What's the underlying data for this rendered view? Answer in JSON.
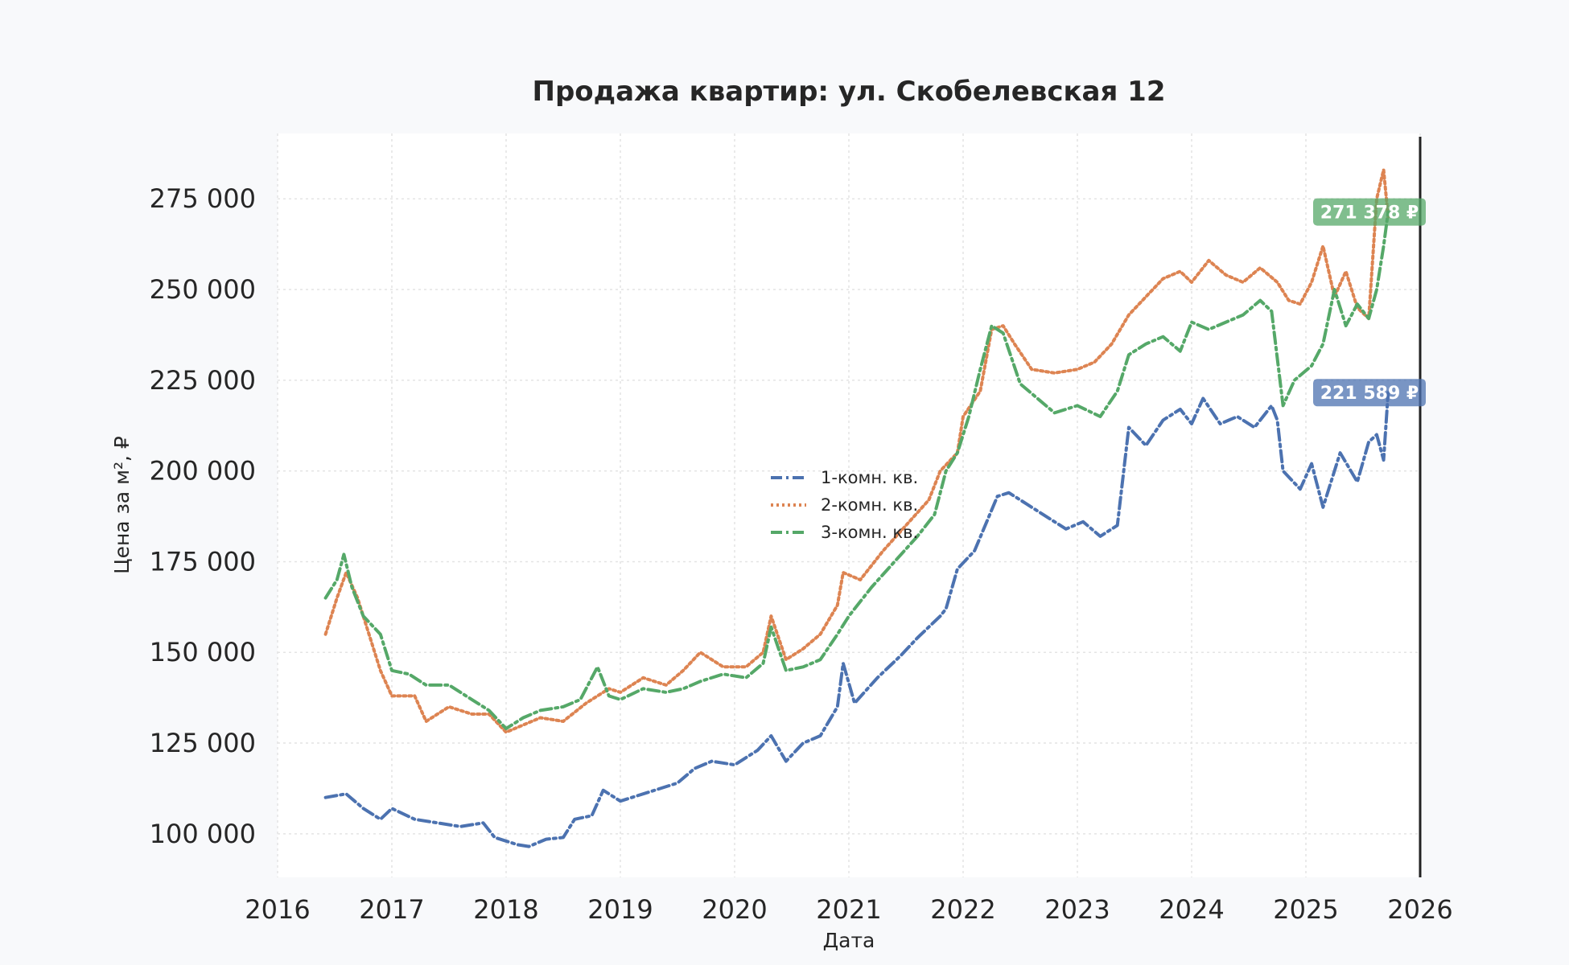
{
  "chart_data": {
    "type": "line",
    "title": "Продажа квартир: ул. Скобелевская 12",
    "xlabel": "Дата",
    "ylabel": "Цена за м², ₽",
    "xlim": [
      2016,
      2026
    ],
    "ylim": [
      88000,
      293000
    ],
    "x_ticks": [
      "2016",
      "2017",
      "2018",
      "2019",
      "2020",
      "2021",
      "2022",
      "2023",
      "2024",
      "2025",
      "2026"
    ],
    "y_ticks": [
      {
        "value": 100000,
        "label": "100 000"
      },
      {
        "value": 125000,
        "label": "125 000"
      },
      {
        "value": 150000,
        "label": "150 000"
      },
      {
        "value": 175000,
        "label": "175 000"
      },
      {
        "value": 200000,
        "label": "200 000"
      },
      {
        "value": 225000,
        "label": "225 000"
      },
      {
        "value": 250000,
        "label": "250 000"
      },
      {
        "value": 275000,
        "label": "275 000"
      }
    ],
    "grid": true,
    "legend_position": "center",
    "vline_x": 2026,
    "series": [
      {
        "name": "1-комн. кв.",
        "color": "#4c72b0",
        "dash": "dash-dot",
        "points": [
          [
            2016.42,
            110000
          ],
          [
            2016.6,
            111000
          ],
          [
            2016.75,
            107000
          ],
          [
            2016.9,
            104000
          ],
          [
            2017.0,
            107000
          ],
          [
            2017.2,
            104000
          ],
          [
            2017.4,
            103000
          ],
          [
            2017.6,
            102000
          ],
          [
            2017.8,
            103000
          ],
          [
            2017.9,
            99000
          ],
          [
            2018.1,
            97000
          ],
          [
            2018.2,
            96500
          ],
          [
            2018.35,
            98500
          ],
          [
            2018.5,
            99000
          ],
          [
            2018.6,
            104000
          ],
          [
            2018.75,
            105000
          ],
          [
            2018.85,
            112000
          ],
          [
            2019.0,
            109000
          ],
          [
            2019.3,
            112000
          ],
          [
            2019.5,
            114000
          ],
          [
            2019.65,
            118000
          ],
          [
            2019.8,
            120000
          ],
          [
            2020.0,
            119000
          ],
          [
            2020.2,
            123000
          ],
          [
            2020.32,
            127000
          ],
          [
            2020.45,
            120000
          ],
          [
            2020.6,
            125000
          ],
          [
            2020.75,
            127000
          ],
          [
            2020.9,
            135000
          ],
          [
            2020.95,
            147000
          ],
          [
            2021.05,
            136000
          ],
          [
            2021.25,
            143000
          ],
          [
            2021.45,
            149000
          ],
          [
            2021.6,
            154000
          ],
          [
            2021.8,
            160000
          ],
          [
            2021.85,
            162000
          ],
          [
            2021.95,
            173000
          ],
          [
            2022.1,
            178000
          ],
          [
            2022.3,
            193000
          ],
          [
            2022.4,
            194000
          ],
          [
            2022.55,
            191000
          ],
          [
            2022.7,
            188000
          ],
          [
            2022.9,
            184000
          ],
          [
            2023.05,
            186000
          ],
          [
            2023.2,
            182000
          ],
          [
            2023.35,
            185000
          ],
          [
            2023.45,
            212000
          ],
          [
            2023.6,
            207000
          ],
          [
            2023.75,
            214000
          ],
          [
            2023.9,
            217000
          ],
          [
            2024.0,
            213000
          ],
          [
            2024.1,
            220000
          ],
          [
            2024.25,
            213000
          ],
          [
            2024.4,
            215000
          ],
          [
            2024.55,
            212000
          ],
          [
            2024.7,
            218000
          ],
          [
            2024.75,
            214000
          ],
          [
            2024.8,
            200000
          ],
          [
            2024.95,
            195000
          ],
          [
            2025.05,
            202000
          ],
          [
            2025.15,
            190000
          ],
          [
            2025.3,
            205000
          ],
          [
            2025.45,
            197000
          ],
          [
            2025.55,
            208000
          ],
          [
            2025.62,
            210000
          ],
          [
            2025.68,
            203000
          ],
          [
            2025.72,
            221589
          ]
        ]
      },
      {
        "name": "2-комн. кв.",
        "color": "#dd8452",
        "dash": "dotted",
        "points": [
          [
            2016.42,
            155000
          ],
          [
            2016.52,
            165000
          ],
          [
            2016.6,
            172000
          ],
          [
            2016.7,
            165000
          ],
          [
            2016.8,
            155000
          ],
          [
            2016.9,
            145000
          ],
          [
            2017.0,
            138000
          ],
          [
            2017.2,
            138000
          ],
          [
            2017.3,
            131000
          ],
          [
            2017.5,
            135000
          ],
          [
            2017.7,
            133000
          ],
          [
            2017.85,
            133000
          ],
          [
            2018.0,
            128000
          ],
          [
            2018.15,
            130000
          ],
          [
            2018.3,
            132000
          ],
          [
            2018.5,
            131000
          ],
          [
            2018.7,
            136000
          ],
          [
            2018.9,
            140000
          ],
          [
            2019.0,
            139000
          ],
          [
            2019.2,
            143000
          ],
          [
            2019.4,
            141000
          ],
          [
            2019.55,
            145000
          ],
          [
            2019.7,
            150000
          ],
          [
            2019.9,
            146000
          ],
          [
            2020.1,
            146000
          ],
          [
            2020.25,
            150000
          ],
          [
            2020.32,
            160000
          ],
          [
            2020.45,
            148000
          ],
          [
            2020.6,
            151000
          ],
          [
            2020.75,
            155000
          ],
          [
            2020.9,
            163000
          ],
          [
            2020.95,
            172000
          ],
          [
            2021.1,
            170000
          ],
          [
            2021.3,
            178000
          ],
          [
            2021.5,
            185000
          ],
          [
            2021.7,
            192000
          ],
          [
            2021.8,
            200000
          ],
          [
            2021.95,
            205000
          ],
          [
            2022.0,
            215000
          ],
          [
            2022.15,
            222000
          ],
          [
            2022.25,
            239000
          ],
          [
            2022.35,
            240000
          ],
          [
            2022.45,
            235000
          ],
          [
            2022.6,
            228000
          ],
          [
            2022.8,
            227000
          ],
          [
            2023.0,
            228000
          ],
          [
            2023.15,
            230000
          ],
          [
            2023.3,
            235000
          ],
          [
            2023.45,
            243000
          ],
          [
            2023.6,
            248000
          ],
          [
            2023.75,
            253000
          ],
          [
            2023.9,
            255000
          ],
          [
            2024.0,
            252000
          ],
          [
            2024.15,
            258000
          ],
          [
            2024.3,
            254000
          ],
          [
            2024.45,
            252000
          ],
          [
            2024.6,
            256000
          ],
          [
            2024.75,
            252000
          ],
          [
            2024.85,
            247000
          ],
          [
            2024.95,
            246000
          ],
          [
            2025.05,
            252000
          ],
          [
            2025.15,
            262000
          ],
          [
            2025.25,
            248000
          ],
          [
            2025.35,
            255000
          ],
          [
            2025.45,
            245000
          ],
          [
            2025.55,
            242000
          ],
          [
            2025.62,
            275000
          ],
          [
            2025.68,
            283000
          ],
          [
            2025.72,
            270000
          ]
        ]
      },
      {
        "name": "3-комн. кв.",
        "color": "#55a868",
        "dash": "dash-dot",
        "points": [
          [
            2016.42,
            165000
          ],
          [
            2016.52,
            170000
          ],
          [
            2016.58,
            177000
          ],
          [
            2016.65,
            168000
          ],
          [
            2016.75,
            160000
          ],
          [
            2016.9,
            155000
          ],
          [
            2017.0,
            145000
          ],
          [
            2017.15,
            144000
          ],
          [
            2017.3,
            141000
          ],
          [
            2017.5,
            141000
          ],
          [
            2017.7,
            137000
          ],
          [
            2017.85,
            134000
          ],
          [
            2018.0,
            129000
          ],
          [
            2018.15,
            132000
          ],
          [
            2018.3,
            134000
          ],
          [
            2018.5,
            135000
          ],
          [
            2018.65,
            137000
          ],
          [
            2018.8,
            146000
          ],
          [
            2018.9,
            138000
          ],
          [
            2019.0,
            137000
          ],
          [
            2019.2,
            140000
          ],
          [
            2019.4,
            139000
          ],
          [
            2019.55,
            140000
          ],
          [
            2019.7,
            142000
          ],
          [
            2019.9,
            144000
          ],
          [
            2020.1,
            143000
          ],
          [
            2020.25,
            147000
          ],
          [
            2020.32,
            157000
          ],
          [
            2020.45,
            145000
          ],
          [
            2020.6,
            146000
          ],
          [
            2020.75,
            148000
          ],
          [
            2020.9,
            155000
          ],
          [
            2021.0,
            160000
          ],
          [
            2021.2,
            168000
          ],
          [
            2021.4,
            175000
          ],
          [
            2021.6,
            182000
          ],
          [
            2021.75,
            188000
          ],
          [
            2021.85,
            200000
          ],
          [
            2021.95,
            205000
          ],
          [
            2022.05,
            215000
          ],
          [
            2022.15,
            228000
          ],
          [
            2022.25,
            240000
          ],
          [
            2022.35,
            238000
          ],
          [
            2022.5,
            224000
          ],
          [
            2022.65,
            220000
          ],
          [
            2022.8,
            216000
          ],
          [
            2023.0,
            218000
          ],
          [
            2023.2,
            215000
          ],
          [
            2023.35,
            222000
          ],
          [
            2023.45,
            232000
          ],
          [
            2023.6,
            235000
          ],
          [
            2023.75,
            237000
          ],
          [
            2023.9,
            233000
          ],
          [
            2024.0,
            241000
          ],
          [
            2024.15,
            239000
          ],
          [
            2024.3,
            241000
          ],
          [
            2024.45,
            243000
          ],
          [
            2024.6,
            247000
          ],
          [
            2024.7,
            244000
          ],
          [
            2024.8,
            218000
          ],
          [
            2024.9,
            225000
          ],
          [
            2025.05,
            229000
          ],
          [
            2025.15,
            235000
          ],
          [
            2025.25,
            250000
          ],
          [
            2025.35,
            240000
          ],
          [
            2025.45,
            246000
          ],
          [
            2025.55,
            242000
          ],
          [
            2025.62,
            250000
          ],
          [
            2025.68,
            262000
          ],
          [
            2025.72,
            271378
          ]
        ]
      }
    ],
    "end_labels": [
      {
        "series": "3-комн. кв.",
        "value": 271378,
        "label": "271 378 ₽",
        "color": "#55a868"
      },
      {
        "series": "1-комн. кв.",
        "value": 221589,
        "label": "221 589 ₽",
        "color": "#4c72b0"
      }
    ]
  }
}
